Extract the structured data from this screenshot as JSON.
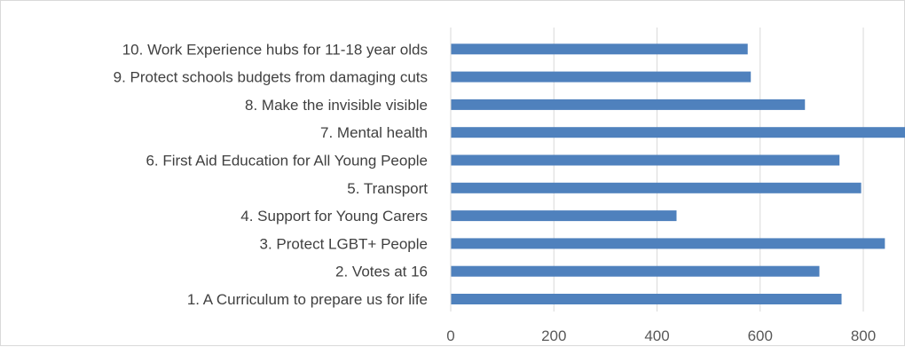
{
  "chart_data": {
    "type": "bar",
    "orientation": "horizontal",
    "title": "",
    "xlabel": "",
    "ylabel": "",
    "categories": [
      "1. A Curriculum to prepare us for life",
      "2. Votes at 16",
      "3. Protect LGBT+ People",
      "4. Support for Young Carers",
      "5. Transport",
      "6. First Aid Education for All Young People",
      "7. Mental health",
      "8. Make the invisible visible",
      "9. Protect schools budgets from damaging cuts",
      "10. Work Experience hubs for 11-18 year olds"
    ],
    "values": [
      757,
      714,
      841,
      437,
      795,
      753,
      880,
      686,
      581,
      575
    ],
    "xlim": [
      0,
      880
    ],
    "xticks": [
      "0",
      "200",
      "400",
      "600",
      "800"
    ],
    "grid": true,
    "legend": "none",
    "colors": {
      "bar": "#4f81bd",
      "grid": "#d9d9d9",
      "label": "#404040",
      "tick": "#595959"
    }
  }
}
